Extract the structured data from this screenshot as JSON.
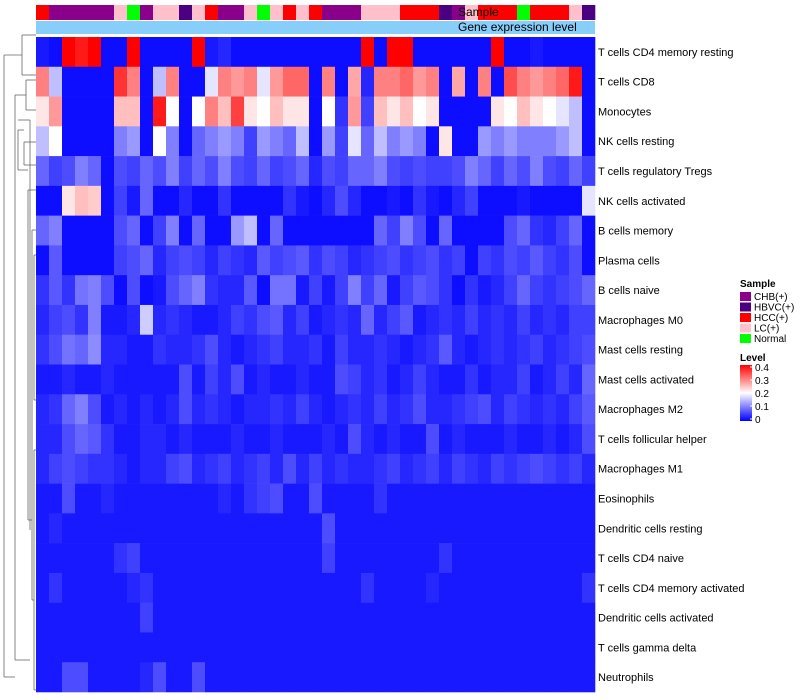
{
  "chart_data": {
    "type": "heatmap",
    "annotation_labels": {
      "sample": "Sample",
      "gene_expression": "Gene expression level"
    },
    "sample_groups": [
      "HCC(+)",
      "CHB(+)",
      "CHB(+)",
      "CHB(+)",
      "CHB(+)",
      "CHB(+)",
      "LC(+)",
      "Normal",
      "CHB(+)",
      "LC(+)",
      "LC(+)",
      "HBVC(+)",
      "LC(+)",
      "HCC(+)",
      "CHB(+)",
      "CHB(+)",
      "LC(+)",
      "Normal",
      "LC(+)",
      "HCC(+)",
      "LC(+)",
      "HCC(+)",
      "CHB(+)",
      "CHB(+)",
      "CHB(+)",
      "LC(+)",
      "LC(+)",
      "LC(+)",
      "HCC(+)",
      "HCC(+)",
      "HCC(+)",
      "HBVC(+)",
      "CHB(+)",
      "LC(+)",
      "HCC(+)",
      "HCC(+)",
      "HCC(+)",
      "Normal",
      "HCC(+)",
      "HCC(+)",
      "HCC(+)",
      "LC(+)",
      "HBVC(+)"
    ],
    "rows": [
      "T cells CD4 memory resting",
      "T cells CD8",
      "Monocytes",
      "NK cells resting",
      "T cells regulatory  Tregs",
      "NK cells activated",
      "B cells memory",
      "Plasma cells",
      "B cells naive",
      "Macrophages M0",
      "Mast cells resting",
      "Mast cells activated",
      "Macrophages M2",
      "T cells follicular helper",
      "Macrophages M1",
      "Eosinophils",
      "Dendritic cells resting",
      "T cells CD4 naive",
      "T cells CD4 memory activated",
      "Dendritic cells activated",
      "T cells gamma delta",
      "Neutrophils"
    ],
    "values": [
      [
        0.02,
        0.01,
        0.4,
        0.38,
        0.4,
        0.01,
        0.01,
        0.4,
        0.01,
        0.01,
        0.01,
        0.01,
        0.4,
        0.02,
        0.03,
        0.01,
        0.01,
        0.01,
        0.01,
        0.01,
        0.01,
        0.01,
        0.01,
        0.01,
        0.01,
        0.4,
        0.01,
        0.4,
        0.4,
        0.01,
        0.01,
        0.01,
        0.01,
        0.01,
        0.01,
        0.4,
        0.01,
        0.01,
        0.02,
        0.01,
        0.01,
        0.01,
        0.01
      ],
      [
        0.3,
        0.15,
        0.01,
        0.01,
        0.01,
        0.01,
        0.36,
        0.3,
        0.01,
        0.15,
        0.3,
        0.01,
        0.01,
        0.18,
        0.3,
        0.28,
        0.3,
        0.18,
        0.28,
        0.32,
        0.32,
        0.01,
        0.3,
        0.01,
        0.27,
        0.03,
        0.3,
        0.3,
        0.32,
        0.28,
        0.3,
        0.01,
        0.27,
        0.01,
        0.3,
        0.01,
        0.34,
        0.3,
        0.28,
        0.3,
        0.32,
        0.38,
        0.01
      ],
      [
        0.22,
        0.28,
        0.01,
        0.01,
        0.01,
        0.01,
        0.25,
        0.25,
        0.01,
        0.38,
        0.2,
        0.01,
        0.2,
        0.3,
        0.25,
        0.35,
        0.22,
        0.2,
        0.25,
        0.22,
        0.22,
        0.01,
        0.2,
        0.04,
        0.28,
        0.05,
        0.25,
        0.22,
        0.25,
        0.2,
        0.22,
        0.01,
        0.01,
        0.01,
        0.01,
        0.22,
        0.2,
        0.25,
        0.22,
        0.2,
        0.18,
        0.15,
        0.01
      ],
      [
        0.15,
        0.2,
        0.01,
        0.01,
        0.01,
        0.01,
        0.1,
        0.12,
        0.01,
        0.2,
        0.1,
        0.01,
        0.08,
        0.1,
        0.12,
        0.1,
        0.05,
        0.12,
        0.1,
        0.08,
        0.15,
        0.01,
        0.12,
        0.05,
        0.18,
        0.08,
        0.15,
        0.1,
        0.12,
        0.1,
        0.01,
        0.22,
        0.01,
        0.01,
        0.12,
        0.1,
        0.12,
        0.1,
        0.1,
        0.1,
        0.12,
        0.15,
        0.01
      ],
      [
        0.08,
        0.05,
        0.06,
        0.1,
        0.08,
        0.01,
        0.06,
        0.05,
        0.08,
        0.06,
        0.1,
        0.05,
        0.08,
        0.06,
        0.1,
        0.06,
        0.05,
        0.08,
        0.05,
        0.06,
        0.08,
        0.03,
        0.06,
        0.05,
        0.08,
        0.08,
        0.1,
        0.06,
        0.05,
        0.06,
        0.05,
        0.05,
        0.06,
        0.1,
        0.08,
        0.05,
        0.08,
        0.06,
        0.1,
        0.06,
        0.05,
        0.08,
        0.05
      ],
      [
        0.01,
        0.01,
        0.22,
        0.25,
        0.24,
        0.01,
        0.05,
        0.02,
        0.08,
        0.01,
        0.01,
        0.03,
        0.01,
        0.01,
        0.04,
        0.01,
        0.01,
        0.01,
        0.01,
        0.04,
        0.02,
        0.01,
        0.03,
        0.06,
        0.03,
        0.01,
        0.01,
        0.02,
        0.01,
        0.04,
        0.02,
        0.01,
        0.03,
        0.05,
        0.01,
        0.01,
        0.01,
        0.02,
        0.01,
        0.01,
        0.01,
        0.01,
        0.18
      ],
      [
        0.08,
        0.1,
        0.01,
        0.01,
        0.01,
        0.01,
        0.06,
        0.08,
        0.01,
        0.05,
        0.1,
        0.01,
        0.08,
        0.01,
        0.01,
        0.12,
        0.15,
        0.01,
        0.08,
        0.01,
        0.01,
        0.01,
        0.01,
        0.01,
        0.01,
        0.01,
        0.08,
        0.05,
        0.1,
        0.06,
        0.01,
        0.08,
        0.01,
        0.01,
        0.01,
        0.01,
        0.06,
        0.08,
        0.04,
        0.03,
        0.05,
        0.08,
        0.01
      ],
      [
        0.01,
        0.07,
        0.01,
        0.01,
        0.01,
        0.01,
        0.05,
        0.06,
        0.08,
        0.03,
        0.05,
        0.06,
        0.05,
        0.03,
        0.05,
        0.04,
        0.03,
        0.07,
        0.05,
        0.06,
        0.07,
        0.04,
        0.06,
        0.05,
        0.03,
        0.04,
        0.05,
        0.06,
        0.04,
        0.05,
        0.06,
        0.04,
        0.05,
        0.01,
        0.05,
        0.04,
        0.06,
        0.05,
        0.07,
        0.05,
        0.04,
        0.06,
        0.01
      ],
      [
        0.04,
        0.07,
        0.04,
        0.09,
        0.1,
        0.06,
        0.01,
        0.06,
        0.01,
        0.02,
        0.06,
        0.08,
        0.1,
        0.04,
        0.03,
        0.03,
        0.07,
        0.01,
        0.09,
        0.09,
        0.02,
        0.05,
        0.02,
        0.05,
        0.1,
        0.05,
        0.08,
        0.02,
        0.05,
        0.07,
        0.06,
        0.04,
        0.01,
        0.04,
        0.02,
        0.03,
        0.05,
        0.08,
        0.05,
        0.04,
        0.05,
        0.06,
        0.08
      ],
      [
        0.03,
        0.05,
        0.06,
        0.04,
        0.1,
        0.02,
        0.02,
        0.03,
        0.16,
        0.03,
        0.04,
        0.03,
        0.02,
        0.02,
        0.03,
        0.05,
        0.04,
        0.06,
        0.07,
        0.03,
        0.05,
        0.02,
        0.03,
        0.04,
        0.03,
        0.08,
        0.03,
        0.05,
        0.07,
        0.02,
        0.03,
        0.04,
        0.03,
        0.05,
        0.03,
        0.04,
        0.03,
        0.05,
        0.03,
        0.04,
        0.03,
        0.05,
        0.05
      ],
      [
        0.04,
        0.06,
        0.09,
        0.08,
        0.11,
        0.03,
        0.03,
        0.02,
        0.02,
        0.04,
        0.03,
        0.03,
        0.04,
        0.06,
        0.03,
        0.02,
        0.03,
        0.04,
        0.05,
        0.03,
        0.03,
        0.04,
        0.02,
        0.05,
        0.03,
        0.03,
        0.04,
        0.03,
        0.02,
        0.03,
        0.04,
        0.07,
        0.03,
        0.02,
        0.03,
        0.04,
        0.03,
        0.04,
        0.05,
        0.03,
        0.04,
        0.05,
        0.06
      ],
      [
        0.02,
        0.02,
        0.03,
        0.02,
        0.02,
        0.03,
        0.02,
        0.02,
        0.02,
        0.02,
        0.02,
        0.06,
        0.02,
        0.05,
        0.03,
        0.06,
        0.02,
        0.03,
        0.02,
        0.02,
        0.03,
        0.02,
        0.02,
        0.06,
        0.05,
        0.03,
        0.04,
        0.02,
        0.03,
        0.05,
        0.03,
        0.02,
        0.02,
        0.04,
        0.02,
        0.03,
        0.03,
        0.05,
        0.02,
        0.03,
        0.05,
        0.03,
        0.08
      ],
      [
        0.03,
        0.04,
        0.08,
        0.1,
        0.06,
        0.02,
        0.03,
        0.02,
        0.03,
        0.02,
        0.03,
        0.06,
        0.03,
        0.04,
        0.03,
        0.02,
        0.03,
        0.03,
        0.04,
        0.03,
        0.05,
        0.03,
        0.02,
        0.03,
        0.04,
        0.03,
        0.05,
        0.03,
        0.04,
        0.06,
        0.03,
        0.03,
        0.04,
        0.05,
        0.06,
        0.03,
        0.05,
        0.04,
        0.03,
        0.04,
        0.03,
        0.05,
        0.07
      ],
      [
        0.03,
        0.03,
        0.06,
        0.08,
        0.07,
        0.04,
        0.02,
        0.02,
        0.03,
        0.03,
        0.02,
        0.03,
        0.02,
        0.02,
        0.02,
        0.03,
        0.02,
        0.02,
        0.03,
        0.02,
        0.02,
        0.02,
        0.03,
        0.02,
        0.06,
        0.03,
        0.02,
        0.03,
        0.02,
        0.02,
        0.06,
        0.02,
        0.03,
        0.02,
        0.02,
        0.02,
        0.03,
        0.02,
        0.02,
        0.03,
        0.02,
        0.03,
        0.06
      ],
      [
        0.03,
        0.05,
        0.06,
        0.05,
        0.04,
        0.04,
        0.03,
        0.02,
        0.03,
        0.03,
        0.05,
        0.06,
        0.03,
        0.04,
        0.05,
        0.03,
        0.04,
        0.05,
        0.03,
        0.06,
        0.03,
        0.05,
        0.03,
        0.04,
        0.03,
        0.03,
        0.04,
        0.05,
        0.03,
        0.04,
        0.05,
        0.03,
        0.05,
        0.04,
        0.03,
        0.05,
        0.04,
        0.05,
        0.06,
        0.05,
        0.04,
        0.05,
        0.03
      ],
      [
        0.02,
        0.02,
        0.06,
        0.02,
        0.02,
        0.03,
        0.02,
        0.02,
        0.02,
        0.02,
        0.02,
        0.02,
        0.02,
        0.02,
        0.03,
        0.02,
        0.04,
        0.05,
        0.06,
        0.02,
        0.02,
        0.06,
        0.02,
        0.02,
        0.02,
        0.02,
        0.04,
        0.02,
        0.02,
        0.02,
        0.02,
        0.02,
        0.02,
        0.02,
        0.02,
        0.02,
        0.02,
        0.02,
        0.02,
        0.02,
        0.02,
        0.02,
        0.02
      ],
      [
        0.02,
        0.03,
        0.02,
        0.02,
        0.02,
        0.02,
        0.02,
        0.02,
        0.02,
        0.02,
        0.02,
        0.02,
        0.02,
        0.02,
        0.02,
        0.02,
        0.02,
        0.02,
        0.02,
        0.02,
        0.02,
        0.02,
        0.06,
        0.02,
        0.02,
        0.02,
        0.02,
        0.02,
        0.02,
        0.02,
        0.02,
        0.02,
        0.02,
        0.02,
        0.02,
        0.02,
        0.02,
        0.02,
        0.02,
        0.02,
        0.02,
        0.02,
        0.02
      ],
      [
        0.02,
        0.02,
        0.02,
        0.02,
        0.02,
        0.02,
        0.04,
        0.05,
        0.02,
        0.02,
        0.02,
        0.02,
        0.02,
        0.02,
        0.02,
        0.02,
        0.02,
        0.02,
        0.02,
        0.02,
        0.02,
        0.02,
        0.05,
        0.02,
        0.02,
        0.02,
        0.02,
        0.02,
        0.02,
        0.02,
        0.02,
        0.04,
        0.02,
        0.02,
        0.02,
        0.02,
        0.02,
        0.02,
        0.02,
        0.02,
        0.02,
        0.02,
        0.02
      ],
      [
        0.02,
        0.04,
        0.02,
        0.02,
        0.02,
        0.02,
        0.02,
        0.03,
        0.04,
        0.02,
        0.02,
        0.02,
        0.02,
        0.02,
        0.02,
        0.02,
        0.02,
        0.02,
        0.02,
        0.02,
        0.02,
        0.02,
        0.02,
        0.02,
        0.02,
        0.04,
        0.02,
        0.02,
        0.02,
        0.02,
        0.03,
        0.02,
        0.02,
        0.02,
        0.02,
        0.02,
        0.02,
        0.02,
        0.02,
        0.02,
        0.02,
        0.02,
        0.04
      ],
      [
        0.02,
        0.02,
        0.02,
        0.02,
        0.02,
        0.02,
        0.02,
        0.02,
        0.05,
        0.02,
        0.02,
        0.02,
        0.02,
        0.02,
        0.02,
        0.02,
        0.02,
        0.02,
        0.02,
        0.02,
        0.02,
        0.02,
        0.02,
        0.02,
        0.02,
        0.02,
        0.02,
        0.02,
        0.02,
        0.02,
        0.02,
        0.02,
        0.02,
        0.02,
        0.02,
        0.02,
        0.02,
        0.02,
        0.02,
        0.02,
        0.02,
        0.02,
        0.02
      ],
      [
        0.02,
        0.02,
        0.02,
        0.02,
        0.02,
        0.02,
        0.02,
        0.02,
        0.02,
        0.02,
        0.02,
        0.02,
        0.02,
        0.02,
        0.02,
        0.02,
        0.02,
        0.02,
        0.02,
        0.02,
        0.02,
        0.02,
        0.02,
        0.02,
        0.02,
        0.02,
        0.02,
        0.02,
        0.02,
        0.02,
        0.02,
        0.02,
        0.02,
        0.02,
        0.02,
        0.02,
        0.02,
        0.02,
        0.02,
        0.02,
        0.02,
        0.02,
        0.02
      ],
      [
        0.02,
        0.02,
        0.06,
        0.06,
        0.02,
        0.02,
        0.02,
        0.02,
        0.03,
        0.06,
        0.02,
        0.02,
        0.06,
        0.02,
        0.02,
        0.02,
        0.02,
        0.02,
        0.02,
        0.02,
        0.02,
        0.02,
        0.02,
        0.02,
        0.02,
        0.02,
        0.02,
        0.02,
        0.02,
        0.02,
        0.02,
        0.02,
        0.02,
        0.02,
        0.02,
        0.02,
        0.02,
        0.02,
        0.02,
        0.02,
        0.02,
        0.02,
        0.02
      ]
    ],
    "color_scale": {
      "min": 0,
      "max": 0.4,
      "stops": [
        {
          "value": 0,
          "color": "#0000ff"
        },
        {
          "value": 0.2,
          "color": "#ffffff"
        },
        {
          "value": 0.4,
          "color": "#ff0000"
        }
      ]
    },
    "legend": {
      "sample_title": "Sample",
      "sample_entries": [
        {
          "label": "CHB(+)",
          "color": "#8b008b"
        },
        {
          "label": "HBVC(+)",
          "color": "#4b0082"
        },
        {
          "label": "HCC(+)",
          "color": "#ff0000"
        },
        {
          "label": "LC(+)",
          "color": "#ffc0cb"
        },
        {
          "label": "Normal",
          "color": "#00ff00"
        }
      ],
      "level_title": "Level",
      "level_ticks": [
        {
          "value": 0.4,
          "label": "0.4"
        },
        {
          "value": 0.3,
          "label": "0.3"
        },
        {
          "value": 0.2,
          "label": "0.2"
        },
        {
          "value": 0.1,
          "label": "0.1"
        },
        {
          "value": 0,
          "label": "0"
        }
      ],
      "position": "right-middle"
    },
    "gene_expression_color": "#87cefa"
  }
}
